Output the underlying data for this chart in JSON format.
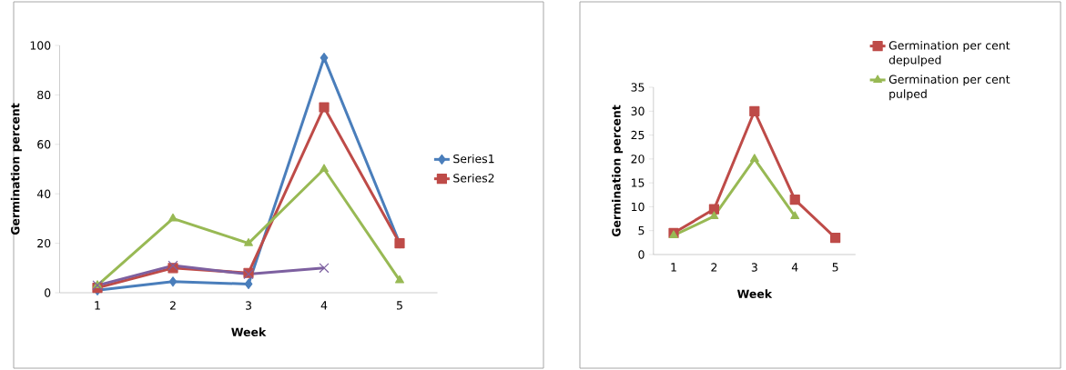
{
  "chart_data": [
    {
      "type": "line",
      "xlabel": "Week",
      "ylabel": "Germination percent",
      "categories": [
        "1",
        "2",
        "3",
        "4",
        "5"
      ],
      "ylim": [
        0,
        100
      ],
      "yticks": [
        0,
        20,
        40,
        60,
        80,
        100
      ],
      "grid": false,
      "legend": "right",
      "series": [
        {
          "name": "Series1",
          "color": "#4a7ebb",
          "marker": "diamond",
          "values": [
            1,
            4.5,
            3.5,
            95,
            20
          ]
        },
        {
          "name": "Series2",
          "color": "#be4b48",
          "marker": "square",
          "values": [
            2,
            10,
            8,
            75,
            20
          ]
        },
        {
          "color": "#98b954",
          "marker": "triangle",
          "values": [
            3,
            30,
            20,
            50,
            5
          ]
        },
        {
          "color": "#7d60a0",
          "marker": "cross",
          "values": [
            3,
            11,
            7.5,
            10,
            null
          ]
        }
      ]
    },
    {
      "type": "line",
      "xlabel": "Week",
      "ylabel": "Germination percent",
      "categories": [
        "1",
        "2",
        "3",
        "4",
        "5"
      ],
      "ylim": [
        0,
        35
      ],
      "yticks": [
        0,
        5,
        10,
        15,
        20,
        25,
        30,
        35
      ],
      "grid": false,
      "legend": "top right",
      "series": [
        {
          "name": "Germination per cent depulped",
          "color": "#be4b48",
          "marker": "square",
          "values": [
            4.5,
            9.5,
            30,
            11.5,
            3.5
          ]
        },
        {
          "name": "Germination per cent pulped",
          "color": "#98b954",
          "marker": "triangle",
          "values": [
            4,
            8,
            20,
            8,
            null
          ]
        }
      ]
    }
  ]
}
